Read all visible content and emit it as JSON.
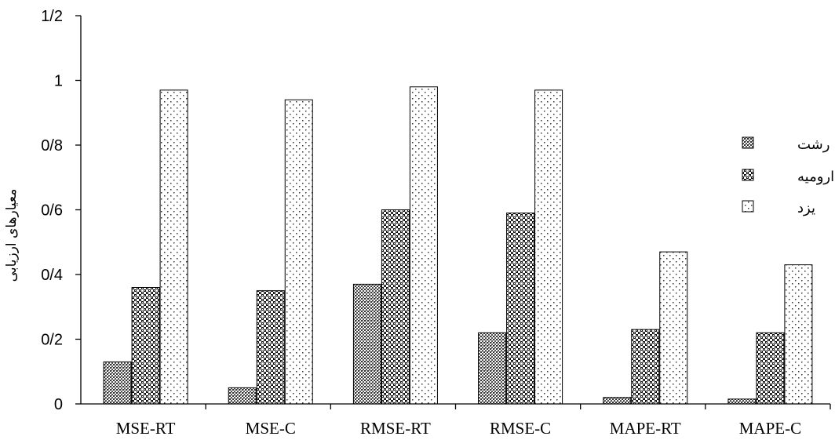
{
  "chart_data": {
    "type": "bar",
    "title": "",
    "xlabel": "",
    "ylabel": "معیارهای ارزیابی",
    "ylim": [
      0,
      1.2
    ],
    "y_ticks": [
      {
        "value": 0,
        "label": "0"
      },
      {
        "value": 0.2,
        "label": "0/2"
      },
      {
        "value": 0.4,
        "label": "0/4"
      },
      {
        "value": 0.6,
        "label": "0/6"
      },
      {
        "value": 0.8,
        "label": "0/8"
      },
      {
        "value": 1.0,
        "label": "1"
      },
      {
        "value": 1.2,
        "label": "1/2"
      }
    ],
    "categories": [
      "MSE-RT",
      "MSE-C",
      "RMSE-RT",
      "RMSE-C",
      "MAPE-RT",
      "MAPE-C"
    ],
    "series": [
      {
        "name": "رشت",
        "pattern": "dense-grid",
        "values": [
          0.13,
          0.05,
          0.37,
          0.22,
          0.02,
          0.015
        ]
      },
      {
        "name": "ارومیه",
        "pattern": "checker",
        "values": [
          0.36,
          0.35,
          0.6,
          0.59,
          0.23,
          0.22
        ]
      },
      {
        "name": "یزد",
        "pattern": "sparse-dots",
        "values": [
          0.97,
          0.94,
          0.98,
          0.97,
          0.47,
          0.43
        ]
      }
    ],
    "grid": false,
    "legend_position": "right"
  }
}
